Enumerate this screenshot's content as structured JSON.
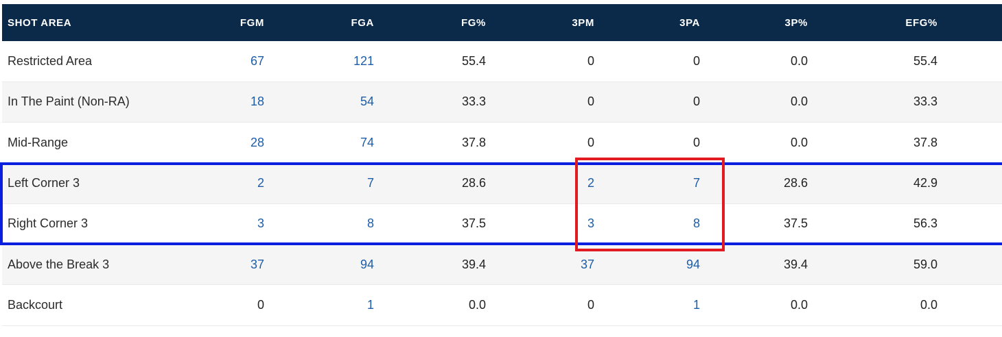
{
  "table": {
    "headers": [
      "SHOT AREA",
      "FGM",
      "FGA",
      "FG%",
      "3PM",
      "3PA",
      "3P%",
      "EFG%"
    ],
    "rows": [
      {
        "area": "Restricted Area",
        "fgm": "67",
        "fga": "121",
        "fg_pct": "55.4",
        "three_pm": "0",
        "three_pa": "0",
        "three_pct": "0.0",
        "efg_pct": "55.4"
      },
      {
        "area": "In The Paint (Non-RA)",
        "fgm": "18",
        "fga": "54",
        "fg_pct": "33.3",
        "three_pm": "0",
        "three_pa": "0",
        "three_pct": "0.0",
        "efg_pct": "33.3"
      },
      {
        "area": "Mid-Range",
        "fgm": "28",
        "fga": "74",
        "fg_pct": "37.8",
        "three_pm": "0",
        "three_pa": "0",
        "three_pct": "0.0",
        "efg_pct": "37.8"
      },
      {
        "area": "Left Corner 3",
        "fgm": "2",
        "fga": "7",
        "fg_pct": "28.6",
        "three_pm": "2",
        "three_pa": "7",
        "three_pct": "28.6",
        "efg_pct": "42.9"
      },
      {
        "area": "Right Corner 3",
        "fgm": "3",
        "fga": "8",
        "fg_pct": "37.5",
        "three_pm": "3",
        "three_pa": "8",
        "three_pct": "37.5",
        "efg_pct": "56.3"
      },
      {
        "area": "Above the Break 3",
        "fgm": "37",
        "fga": "94",
        "fg_pct": "39.4",
        "three_pm": "37",
        "three_pa": "94",
        "three_pct": "39.4",
        "efg_pct": "59.0"
      },
      {
        "area": "Backcourt",
        "fgm": "0",
        "fga": "1",
        "fg_pct": "0.0",
        "three_pm": "0",
        "three_pa": "1",
        "three_pct": "0.0",
        "efg_pct": "0.0"
      }
    ]
  },
  "colors": {
    "header_bg": "#0b2a4a",
    "link": "#1d5da8",
    "highlight_blue": "#0a1ee0",
    "highlight_red": "#e21b22"
  }
}
